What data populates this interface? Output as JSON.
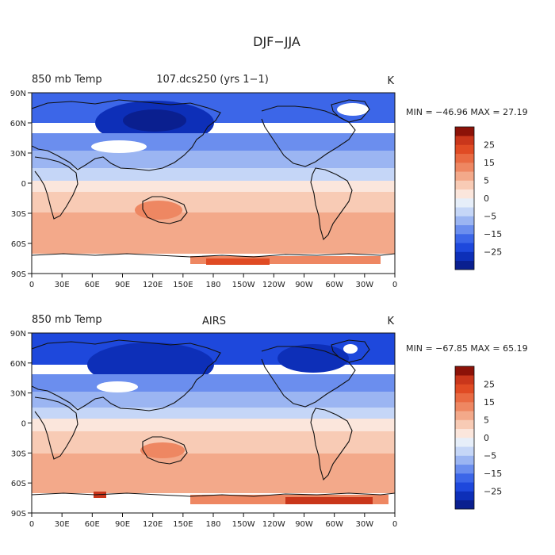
{
  "figure": {
    "title": "DJF−JJA"
  },
  "colorbar": {
    "colors": [
      "#0a1f8f",
      "#0d2fb8",
      "#1e48dc",
      "#3c66e8",
      "#6b8eee",
      "#9bb5f2",
      "#c5d6f7",
      "#e6eef9",
      "#fbe6dc",
      "#f8cbb5",
      "#f3a98a",
      "#ee8762",
      "#e96a42",
      "#e04b24",
      "#c9361b",
      "#8c1208"
    ],
    "labels": [
      "25",
      "15",
      "5",
      "0",
      "−5",
      "−15",
      "−25"
    ]
  },
  "chart_data": [
    {
      "type": "heatmap",
      "title_left": "850 mb Temp",
      "title_center": "107.dcs250 (yrs 1−1)",
      "units": "K",
      "stats_text": "MIN = −46.96  MAX =  27.19",
      "min": -46.96,
      "max": 27.19,
      "x_tick_labels": [
        "0",
        "30E",
        "60E",
        "90E",
        "120E",
        "150E",
        "180",
        "150W",
        "120W",
        "90W",
        "60W",
        "30W",
        "0"
      ],
      "y_tick_labels": [
        "90N",
        "60N",
        "30N",
        "0",
        "30S",
        "60S",
        "90S"
      ],
      "levels": [
        -30,
        -25,
        -20,
        -15,
        -10,
        -5,
        -2.5,
        0,
        2.5,
        5,
        10,
        15,
        20,
        25,
        30
      ]
    },
    {
      "type": "heatmap",
      "title_left": "850 mb Temp",
      "title_center": "AIRS",
      "units": "K",
      "stats_text": "MIN = −67.85  MAX =  65.19",
      "min": -67.85,
      "max": 65.19,
      "x_tick_labels": [
        "0",
        "30E",
        "60E",
        "90E",
        "120E",
        "150E",
        "180",
        "150W",
        "120W",
        "90W",
        "60W",
        "30W",
        "0"
      ],
      "y_tick_labels": [
        "90N",
        "60N",
        "30N",
        "0",
        "30S",
        "60S",
        "90S"
      ],
      "levels": [
        -30,
        -25,
        -20,
        -15,
        -10,
        -5,
        -2.5,
        0,
        2.5,
        5,
        10,
        15,
        20,
        25,
        30
      ]
    }
  ]
}
